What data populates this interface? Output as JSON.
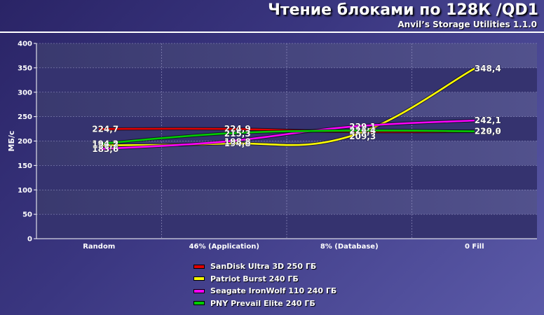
{
  "header": {
    "title": "Чтение блоками по 128К /QD1",
    "subtitle": "Anvil’s Storage Utilities 1.1.0"
  },
  "chart_data": {
    "type": "line",
    "title": "Чтение блоками по 128К /QD1",
    "subtitle": "Anvil’s Storage Utilities 1.1.0",
    "xlabel": "",
    "ylabel": "МБ/с",
    "ylim": [
      0,
      400
    ],
    "yticks": [
      "0",
      "50",
      "100",
      "150",
      "200",
      "250",
      "300",
      "350",
      "400"
    ],
    "categories": [
      "Random",
      "46% (Application)",
      "8% (Database)",
      "0 Fill"
    ],
    "grid": true,
    "legend_position": "bottom",
    "series": [
      {
        "name": "SanDisk Ultra 3D 250 ГБ",
        "color": "#e00000",
        "values": [
          224.7,
          224.9,
          219.5,
          219.9
        ],
        "labels": [
          "224,7",
          "224,9",
          "219,5",
          "219,9"
        ]
      },
      {
        "name": "Patriot Burst 240 ГБ",
        "color": "#ffff00",
        "values": [
          191.2,
          194.8,
          209.3,
          348.4
        ],
        "labels": [
          "191,2",
          "194,8",
          "209,3",
          "348,4"
        ]
      },
      {
        "name": "Seagate IronWolf 110 240 ГБ",
        "color": "#ff00ff",
        "values": [
          183.6,
          198.8,
          229.1,
          242.1
        ],
        "labels": [
          "183,6",
          "198,8",
          "229,1",
          "242,1"
        ]
      },
      {
        "name": "PNY Prevail Elite 240 ГБ",
        "color": "#00cc00",
        "values": [
          194.2,
          215.3,
          221.4,
          220.0
        ],
        "labels": [
          "194,2",
          "215,3",
          "221,4",
          "220,0"
        ]
      }
    ]
  }
}
